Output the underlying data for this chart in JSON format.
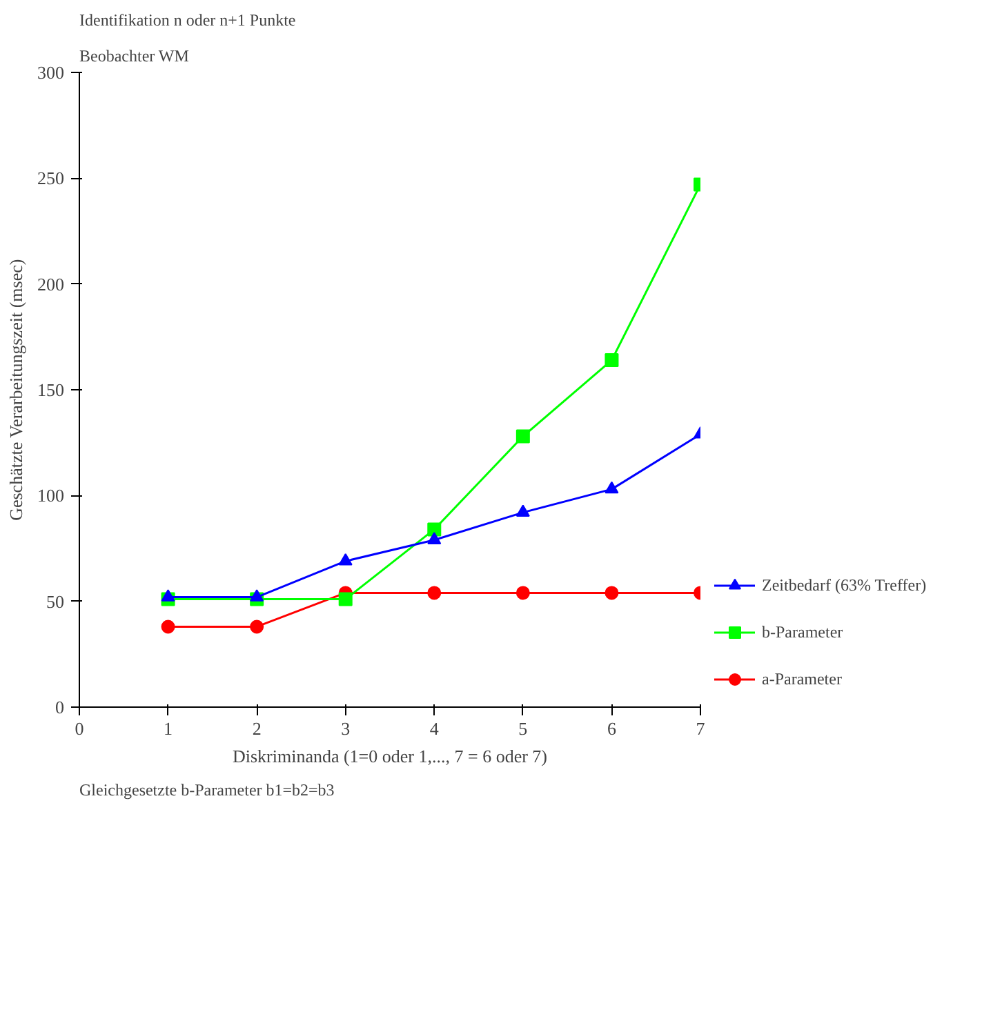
{
  "chart_data": {
    "type": "line",
    "title": "Identifikation n oder n+1 Punkte",
    "subtitle": "Beobachter WM",
    "xlabel": "Diskriminanda (1=0 oder 1,..., 7 = 6 oder 7)",
    "ylabel": "Geschätzte Verarbeitungszeit (msec)",
    "annotations": [
      "Gleichgesetzte b-Parameter b1=b2=b3"
    ],
    "x": [
      1,
      2,
      3,
      4,
      5,
      6,
      7
    ],
    "series": [
      {
        "name": "Zeitbedarf (63% Treffer)",
        "color": "#0000ff",
        "marker": "triangle",
        "values": [
          52,
          52,
          69,
          79,
          92,
          103,
          129
        ]
      },
      {
        "name": "b-Parameter",
        "color": "#00ff00",
        "marker": "square",
        "values": [
          51,
          51,
          51,
          84,
          128,
          164,
          247
        ]
      },
      {
        "name": "a-Parameter",
        "color": "#ff0000",
        "marker": "circle",
        "values": [
          38,
          38,
          54,
          54,
          54,
          54,
          54
        ]
      }
    ],
    "xlim": [
      0,
      7
    ],
    "ylim": [
      0,
      300
    ],
    "xticks": [
      0,
      1,
      2,
      3,
      4,
      5,
      6,
      7
    ],
    "yticks": [
      0,
      50,
      100,
      150,
      200,
      250,
      300
    ],
    "grid": false,
    "legend": "right",
    "line_style": "solid"
  }
}
